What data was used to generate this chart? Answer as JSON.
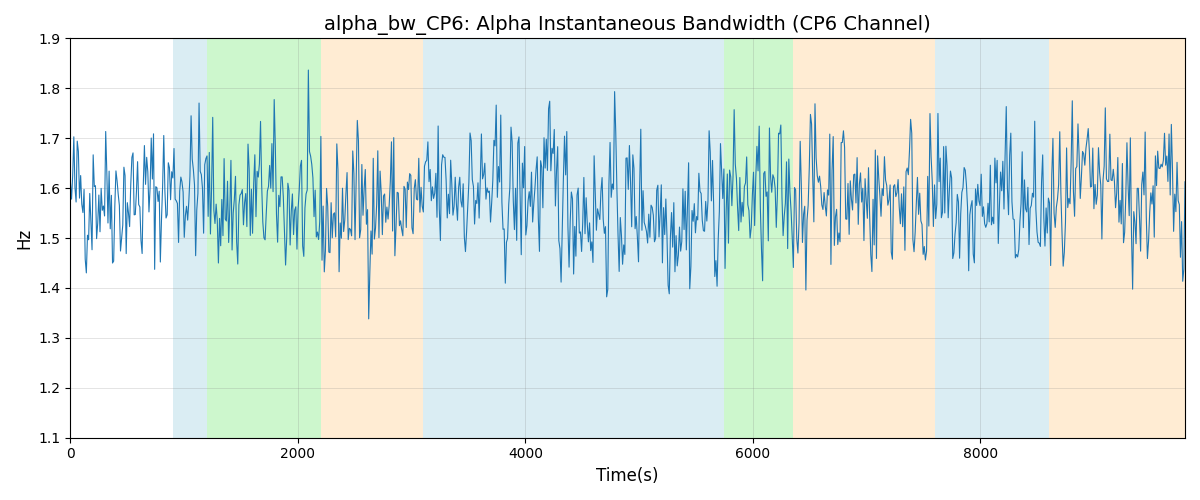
{
  "title": "alpha_bw_CP6: Alpha Instantaneous Bandwidth (CP6 Channel)",
  "xlabel": "Time(s)",
  "ylabel": "Hz",
  "ylim": [
    1.1,
    1.9
  ],
  "xlim": [
    0,
    9800
  ],
  "bg_color": "#ffffff",
  "line_color": "#1f77b4",
  "line_width": 0.8,
  "bands": [
    {
      "xmin": 900,
      "xmax": 1200,
      "color": "#add8e6",
      "alpha": 0.45
    },
    {
      "xmin": 1200,
      "xmax": 2200,
      "color": "#90ee90",
      "alpha": 0.45
    },
    {
      "xmin": 2200,
      "xmax": 3100,
      "color": "#ffd59e",
      "alpha": 0.45
    },
    {
      "xmin": 3100,
      "xmax": 5500,
      "color": "#add8e6",
      "alpha": 0.45
    },
    {
      "xmin": 5500,
      "xmax": 5750,
      "color": "#add8e6",
      "alpha": 0.45
    },
    {
      "xmin": 5750,
      "xmax": 6350,
      "color": "#90ee90",
      "alpha": 0.45
    },
    {
      "xmin": 6350,
      "xmax": 7600,
      "color": "#ffd59e",
      "alpha": 0.45
    },
    {
      "xmin": 7600,
      "xmax": 7900,
      "color": "#add8e6",
      "alpha": 0.45
    },
    {
      "xmin": 7900,
      "xmax": 8600,
      "color": "#add8e6",
      "alpha": 0.45
    },
    {
      "xmin": 8600,
      "xmax": 9800,
      "color": "#ffd59e",
      "alpha": 0.45
    }
  ],
  "grid": true,
  "title_fontsize": 14,
  "seed": 42,
  "n_points": 980,
  "total_time": 9800,
  "mean": 1.575,
  "std": 0.075
}
